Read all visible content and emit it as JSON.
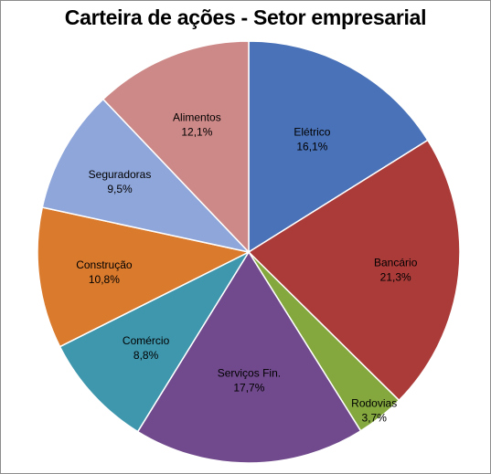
{
  "chart_data": {
    "type": "pie",
    "title": "Carteira de ações - Setor empresarial",
    "categories": [
      "Elétrico",
      "Bancário",
      "Rodovias",
      "Serviços Fin.",
      "Comércio",
      "Construção",
      "Seguradoras",
      "Alimentos"
    ],
    "values": [
      16.1,
      21.3,
      3.7,
      17.7,
      8.8,
      10.8,
      9.5,
      12.1
    ],
    "value_labels": [
      "16,1%",
      "21,3%",
      "3,7%",
      "17,7%",
      "8,8%",
      "10,8%",
      "9,5%",
      "12,1%"
    ],
    "colors": [
      "#4a72b8",
      "#ab3b39",
      "#84a83e",
      "#704a8c",
      "#3f97ad",
      "#d97a2d",
      "#8fa6da",
      "#cd8987"
    ],
    "start_angle_deg": 0,
    "direction": "clockwise",
    "legend": "none",
    "labels_position": "inside"
  }
}
